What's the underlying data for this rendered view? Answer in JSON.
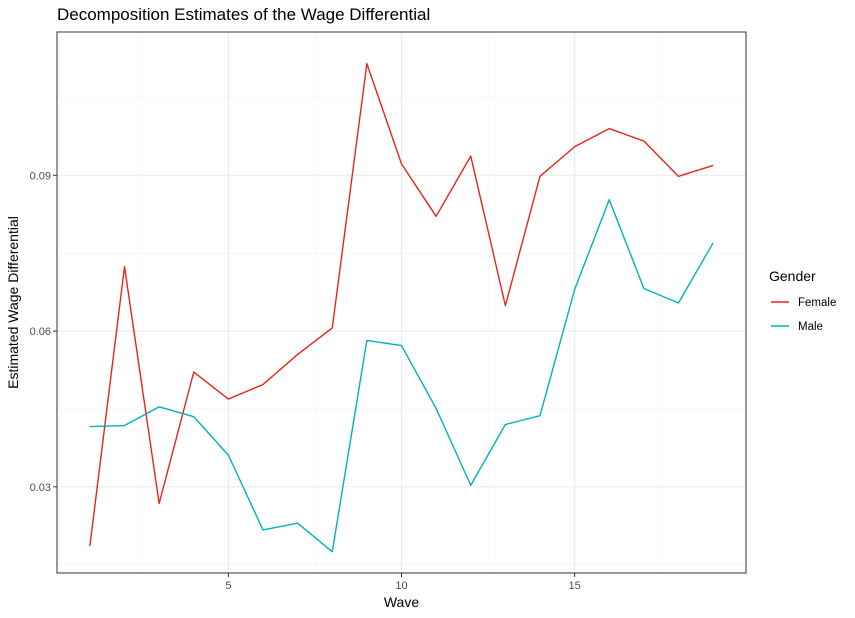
{
  "chart_data": {
    "type": "line",
    "title": "Decomposition Estimates of the Wage Differential",
    "xlabel": "Wave",
    "ylabel": "Estimated Wage Differential",
    "xlim": [
      0.05,
      19.95
    ],
    "ylim": [
      0.0134,
      0.1176
    ],
    "x_ticks": [
      5,
      10,
      15
    ],
    "x_tick_labels": [
      "5",
      "10",
      "15"
    ],
    "y_ticks": [
      0.03,
      0.06,
      0.09
    ],
    "y_tick_labels": [
      "0.03",
      "0.06",
      "0.09"
    ],
    "grid": true,
    "legend": {
      "title": "Gender",
      "position": "right"
    },
    "x": [
      1,
      2,
      3,
      4,
      5,
      6,
      7,
      8,
      9,
      10,
      11,
      12,
      13,
      14,
      15,
      16,
      17,
      18,
      19
    ],
    "series": [
      {
        "name": "Female",
        "color": "#F8766D",
        "stroke": "#e8251b",
        "values": [
          0.0186,
          0.0724,
          0.0268,
          0.0521,
          0.0469,
          0.0497,
          0.0555,
          0.0606,
          0.1115,
          0.0922,
          0.0821,
          0.0937,
          0.0649,
          0.0898,
          0.0955,
          0.099,
          0.0966,
          0.0898,
          0.0919
        ]
      },
      {
        "name": "Male",
        "color": "#00BFC4",
        "stroke": "#00b3b9",
        "values": [
          0.0416,
          0.0418,
          0.0454,
          0.0435,
          0.0361,
          0.0217,
          0.023,
          0.0175,
          0.0582,
          0.0572,
          0.0451,
          0.0303,
          0.042,
          0.0437,
          0.068,
          0.0853,
          0.0682,
          0.0654,
          0.077
        ]
      }
    ]
  }
}
